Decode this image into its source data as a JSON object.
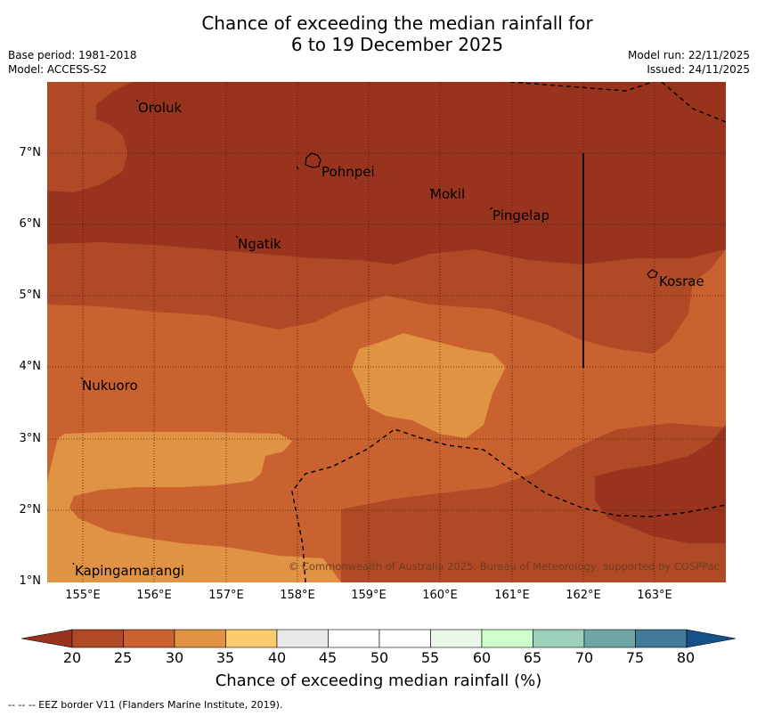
{
  "title": {
    "line1": "Chance of exceeding the median rainfall for",
    "line2": "6 to 19 December 2025"
  },
  "meta": {
    "base_period": "Base period: 1981-2018",
    "model": "Model: ACCESS-S2",
    "model_run": "Model run: 22/11/2025",
    "issued": "Issued: 24/11/2025"
  },
  "axes": {
    "lat_labels": [
      "7°N",
      "6°N",
      "5°N",
      "4°N",
      "3°N",
      "2°N",
      "1°N"
    ],
    "lon_labels": [
      "155°E",
      "156°E",
      "157°E",
      "158°E",
      "159°E",
      "160°E",
      "161°E",
      "162°E",
      "163°E"
    ]
  },
  "places": {
    "oroluk": "Oroluk",
    "pohnpei": "Pohnpei",
    "mokil": "Mokil",
    "pingelap": "Pingelap",
    "ngatik": "Ngatik",
    "kosrae": "Kosrae",
    "nukuoro": "Nukuoro",
    "kapingamarangi": "Kapingamarangi"
  },
  "copyright": "© Commonwealth of Australia 2025, Bureau of Meteorology, supported by COSPPac",
  "colorbar": {
    "ticks": [
      "20",
      "25",
      "30",
      "35",
      "40",
      "45",
      "50",
      "55",
      "60",
      "65",
      "70",
      "75",
      "80"
    ],
    "colors": [
      "#98341e",
      "#b04a26",
      "#c9622f",
      "#e09443",
      "#fdcb6e",
      "#e9e9e9",
      "#ffffff",
      "#ffffff",
      "#ebf7e9",
      "#ccffcc",
      "#9dd0b8",
      "#6fa5a5",
      "#417b99",
      "#16518a"
    ],
    "title": "Chance of exceeding median rainfall (%)"
  },
  "footer": "--  --  -- EEZ border V11 (Flanders Marine Institute, 2019)."
}
